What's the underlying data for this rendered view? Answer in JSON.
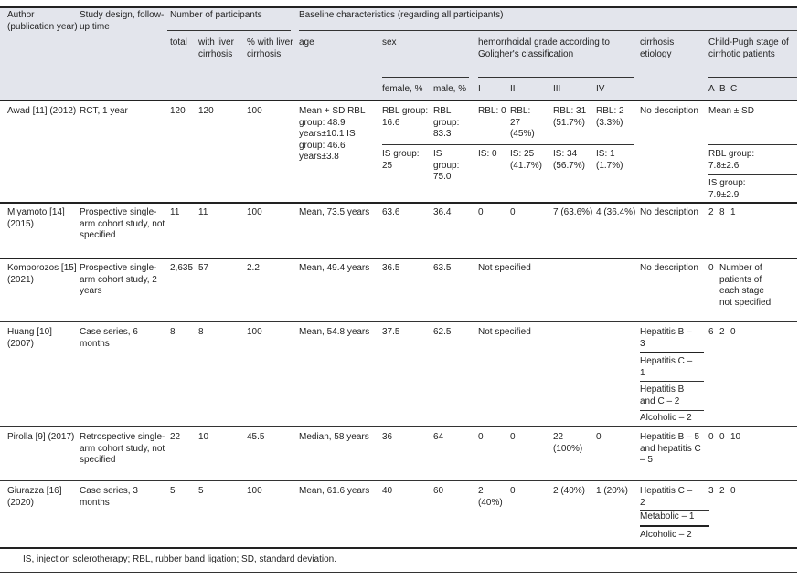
{
  "header": {
    "author": "Author (publication year)",
    "design": "Study design, follow-up time",
    "participants": "Number of participants",
    "total": "total",
    "with_lc": "with liver cirrhosis",
    "pct_lc": "% with liver cirrhosis",
    "baseline": "Baseline characteristics (regarding all participants)",
    "age": "age",
    "sex": "sex",
    "female": "female, %",
    "male": "male, %",
    "hemo": "hemorrhoidal grade according to Goligher's classification",
    "grades": [
      "I",
      "II",
      "III",
      "IV"
    ],
    "etiology": "cirrhosis etiology",
    "child_pugh": "Child-Pugh stage of cirrhotic patients",
    "cp_stages": [
      "A",
      "B",
      "C"
    ]
  },
  "rows": [
    {
      "author": "Awad [11] (2012)",
      "design": "RCT, 1 year",
      "total": "120",
      "with_lc": "120",
      "pct_lc": "100",
      "age": "Mean + SD RBL group: 48.9 years±10.1 IS group: 46.6 years±3.8",
      "female": [
        "RBL group: 16.6",
        "IS group: 25"
      ],
      "male": [
        "RBL group: 83.3",
        "IS group: 75.0"
      ],
      "g1": [
        "RBL: 0",
        "IS: 0"
      ],
      "g2": [
        "RBL: 27 (45%)",
        "IS: 25 (41.7%)"
      ],
      "g3": [
        "RBL: 31 (51.7%)",
        "IS: 34 (56.7%)"
      ],
      "g4": [
        "RBL: 2 (3.3%)",
        "IS: 1 (1.7%)"
      ],
      "etiology": "No description",
      "cp": [
        "Mean ± SD",
        "RBL group: 7.8±2.6",
        "IS group: 7.9±2.9"
      ]
    },
    {
      "author": "Miyamoto [14] (2015)",
      "design": "Prospective single-arm cohort study, not specified",
      "total": "11",
      "with_lc": "11",
      "pct_lc": "100",
      "age": "Mean, 73.5 years",
      "female": "63.6",
      "male": "36.4",
      "g1": "0",
      "g2": "0",
      "g3": "7 (63.6%)",
      "g4": "4 (36.4%)",
      "etiology": "No description",
      "cp": [
        "2",
        "8",
        "1"
      ]
    },
    {
      "author": "Komporozos [15] (2021)",
      "design": "Prospective single-arm cohort study, 2 years",
      "total": "2,635",
      "with_lc": "57",
      "pct_lc": "2.2",
      "age": "Mean, 49.4 years",
      "female": "36.5",
      "male": "63.5",
      "grade": "Not specified",
      "etiology": "No description",
      "cp_a": "0",
      "cp_note": "Number of patients of each stage not specified"
    },
    {
      "author": "Huang [10] (2007)",
      "design": "Case series, 6 months",
      "total": "8",
      "with_lc": "8",
      "pct_lc": "100",
      "age": "Mean, 54.8 years",
      "female": "37.5",
      "male": "62.5",
      "grade": "Not specified",
      "etiology": [
        "Hepatitis B – 3",
        "Hepatitis C – 1",
        "Hepatitis B and C – 2",
        "Alcoholic – 2"
      ],
      "cp": [
        "6",
        "2",
        "0"
      ]
    },
    {
      "author": "Pirolla [9] (2017)",
      "design": "Retrospective single-arm cohort study, not specified",
      "total": "22",
      "with_lc": "10",
      "pct_lc": "45.5",
      "age": "Median, 58 years",
      "female": "36",
      "male": "64",
      "g1": "0",
      "g2": "0",
      "g3": "22 (100%)",
      "g4": "0",
      "etiology": "Hepatitis B – 5 and hepatitis C – 5",
      "cp": [
        "0",
        "0",
        "10"
      ]
    },
    {
      "author": "Giurazza [16] (2020)",
      "design": "Case series, 3 months",
      "total": "5",
      "with_lc": "5",
      "pct_lc": "100",
      "age": "Mean, 61.6 years",
      "female": "40",
      "male": "60",
      "g1": "2 (40%)",
      "g2": "0",
      "g3": "2 (40%)",
      "g4": "1 (20%)",
      "etiology": [
        "Hepatitis C – 2",
        "Metabolic – 1",
        "Alcoholic – 2"
      ],
      "cp": [
        "3",
        "2",
        "0"
      ]
    }
  ],
  "footnote": "IS, injection sclerotherapy; RBL, rubber band ligation; SD, standard deviation."
}
